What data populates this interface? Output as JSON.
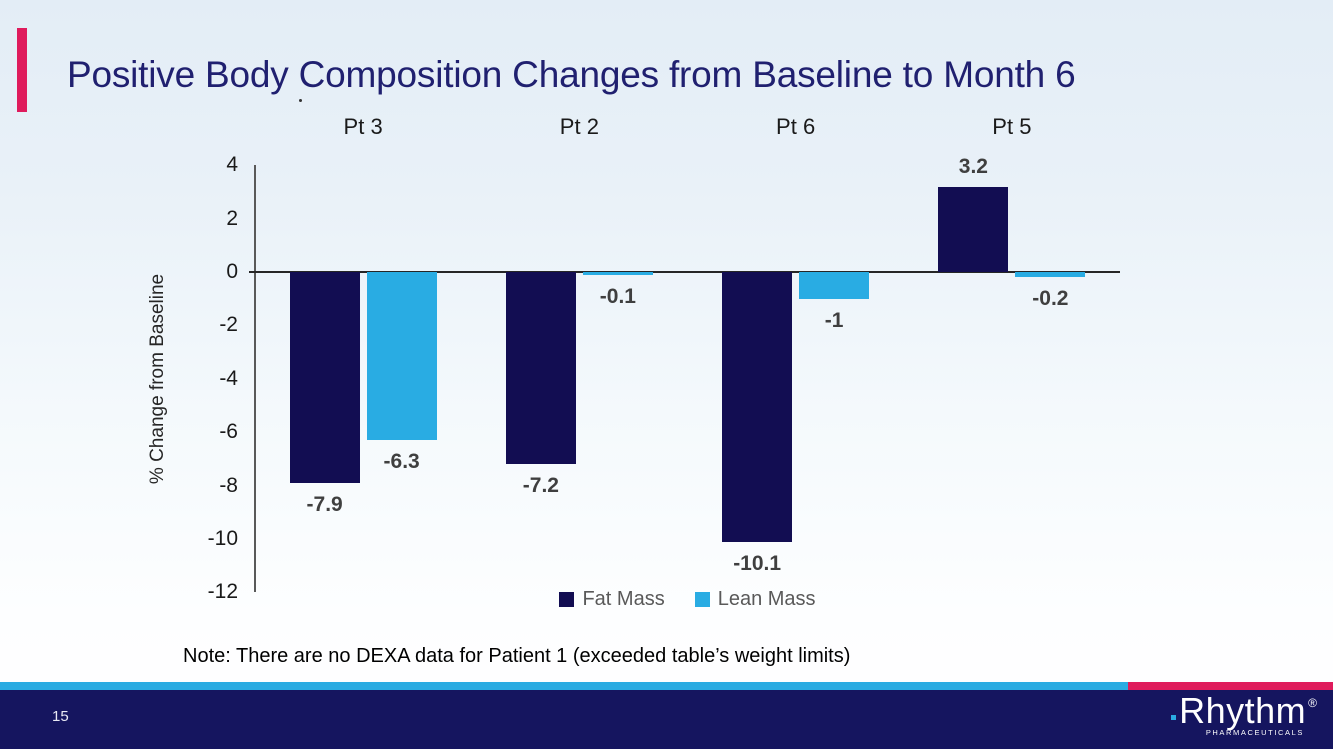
{
  "slide": {
    "title": "Positive Body Composition Changes from Baseline to Month 6",
    "note": "Note: There are no DEXA data for Patient 1 (exceeded table’s weight limits)"
  },
  "chart_data": {
    "type": "bar",
    "title": "",
    "categories": [
      "Pt 3",
      "Pt 2",
      "Pt 6",
      "Pt 5"
    ],
    "series": [
      {
        "name": "Fat Mass",
        "color": "#120d52",
        "values": [
          -7.9,
          -7.2,
          -10.1,
          3.2
        ]
      },
      {
        "name": "Lean Mass",
        "color": "#29ace3",
        "values": [
          -6.3,
          -0.1,
          -1,
          -0.2
        ]
      }
    ],
    "ylabel": "% Change from Baseline",
    "xlabel": "",
    "ylim": [
      -12,
      4
    ],
    "ytick_step": 2,
    "grid": false,
    "legend_position": "bottom",
    "data_labels": true,
    "data_label_color": "#3f3f3f"
  },
  "footer": {
    "page_number": "15",
    "logo_brand": "Rhythm",
    "logo_registered": "®",
    "logo_subtext": "PHARMACEUTICALS"
  },
  "colors": {
    "accent_pink": "#df1b5c",
    "stripe_blue": "#2aabe2",
    "footer_navy": "#15155f",
    "title_navy": "#202070"
  }
}
